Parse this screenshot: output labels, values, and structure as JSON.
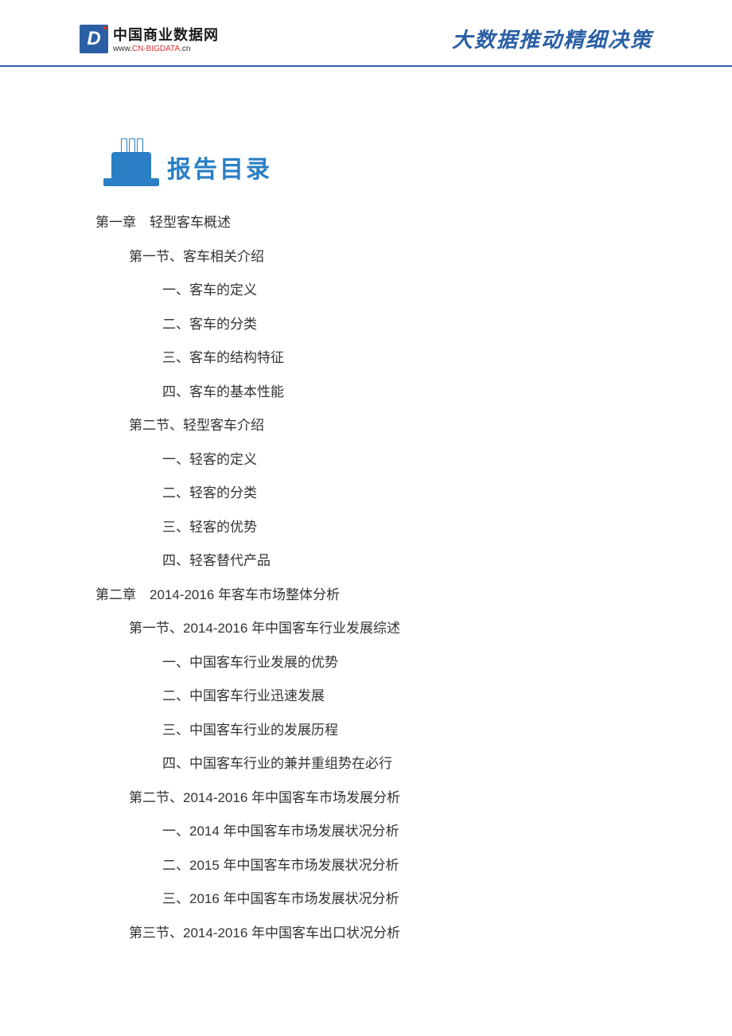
{
  "header": {
    "logo_letter": "D",
    "logo_title": "中国商业数据网",
    "logo_url_prefix": "www.",
    "logo_url_main": "CN-BIGDATA",
    "logo_url_suffix": ".cn",
    "slogan": "大数据推动精细决策"
  },
  "toc": {
    "title": "报告目录",
    "entries": [
      {
        "level": "chapter",
        "text": "第一章　轻型客车概述"
      },
      {
        "level": "section",
        "text": "第一节、客车相关介绍"
      },
      {
        "level": "item",
        "text": "一、客车的定义"
      },
      {
        "level": "item",
        "text": "二、客车的分类"
      },
      {
        "level": "item",
        "text": "三、客车的结构特征"
      },
      {
        "level": "item",
        "text": "四、客车的基本性能"
      },
      {
        "level": "section",
        "text": "第二节、轻型客车介绍"
      },
      {
        "level": "item",
        "text": "一、轻客的定义"
      },
      {
        "level": "item",
        "text": "二、轻客的分类"
      },
      {
        "level": "item",
        "text": "三、轻客的优势"
      },
      {
        "level": "item",
        "text": "四、轻客替代产品"
      },
      {
        "level": "chapter",
        "text": "第二章　2014-2016 年客车市场整体分析"
      },
      {
        "level": "section",
        "text": "第一节、2014-2016 年中国客车行业发展综述"
      },
      {
        "level": "item",
        "text": "一、中国客车行业发展的优势"
      },
      {
        "level": "item",
        "text": "二、中国客车行业迅速发展"
      },
      {
        "level": "item",
        "text": "三、中国客车行业的发展历程"
      },
      {
        "level": "item",
        "text": "四、中国客车行业的兼并重组势在必行"
      },
      {
        "level": "section",
        "text": "第二节、2014-2016 年中国客车市场发展分析"
      },
      {
        "level": "item",
        "text": "一、2014 年中国客车市场发展状况分析"
      },
      {
        "level": "item",
        "text": "二、2015 年中国客车市场发展状况分析"
      },
      {
        "level": "item",
        "text": "三、2016 年中国客车市场发展状况分析"
      },
      {
        "level": "section",
        "text": "第三节、2014-2016 年中国客车出口状况分析"
      }
    ]
  },
  "styling": {
    "primary_color": "#2a5fa5",
    "icon_color": "#2a7fc5",
    "text_color": "#333333",
    "background_color": "#ffffff",
    "accent_red": "#d93030",
    "body_fontsize": 17,
    "toc_title_fontsize": 30,
    "slogan_fontsize": 26,
    "line_height": 2.5
  }
}
